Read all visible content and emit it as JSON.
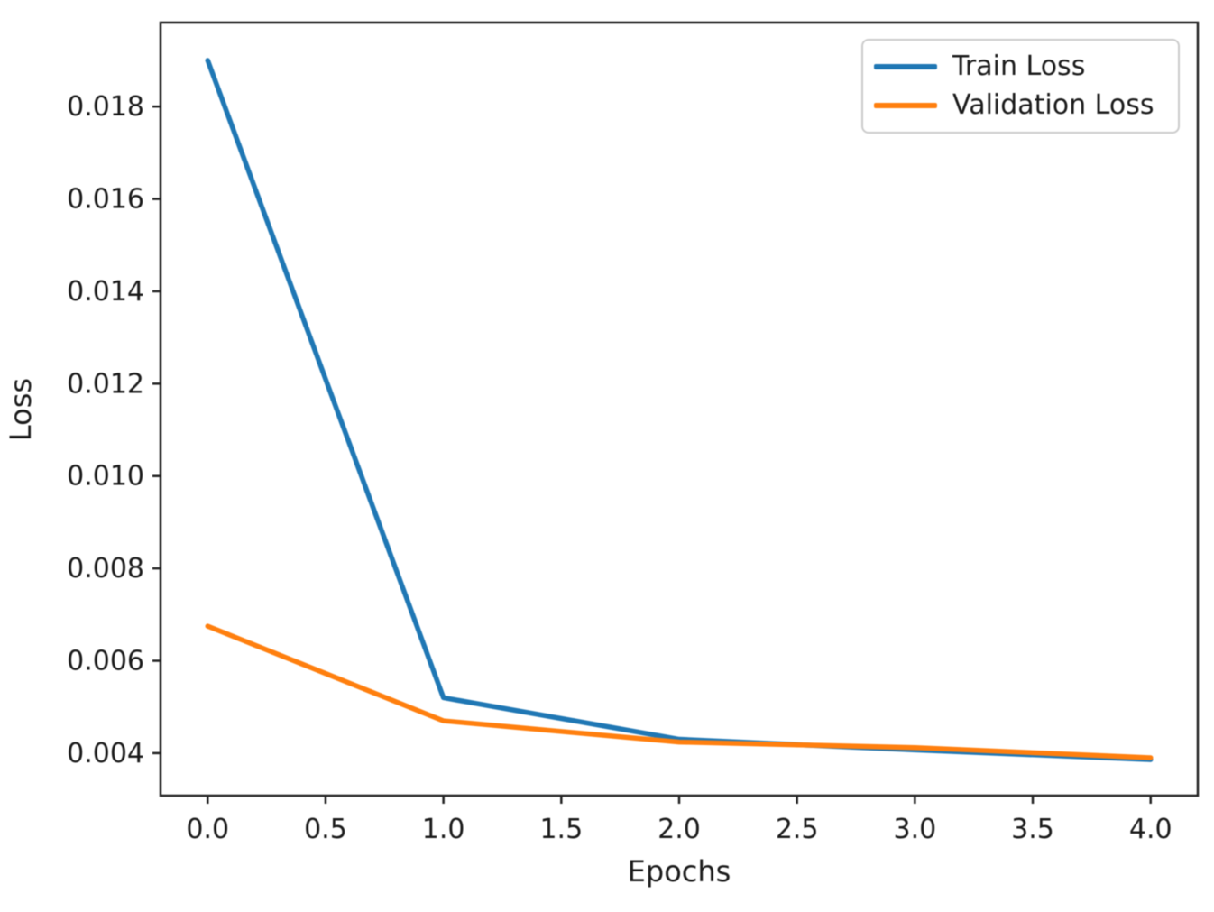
{
  "chart_data": {
    "type": "line",
    "title": "",
    "xlabel": "Epochs",
    "ylabel": "Loss",
    "x": [
      0,
      1,
      2,
      3,
      4
    ],
    "series": [
      {
        "name": "Train Loss",
        "color": "#1f77b4",
        "values": [
          0.019,
          0.0052,
          0.0043,
          0.00407,
          0.00386
        ]
      },
      {
        "name": "Validation Loss",
        "color": "#ff7f0e",
        "values": [
          0.00675,
          0.0047,
          0.00424,
          0.00412,
          0.0039
        ]
      }
    ],
    "xlim": [
      -0.2,
      4.2
    ],
    "ylim": [
      0.00308,
      0.01982
    ],
    "x_ticks": [
      0.0,
      0.5,
      1.0,
      1.5,
      2.0,
      2.5,
      3.0,
      3.5,
      4.0
    ],
    "x_tick_labels": [
      "0.0",
      "0.5",
      "1.0",
      "1.5",
      "2.0",
      "2.5",
      "3.0",
      "3.5",
      "4.0"
    ],
    "y_ticks": [
      0.004,
      0.006,
      0.008,
      0.01,
      0.012,
      0.014,
      0.016,
      0.018
    ],
    "y_tick_labels": [
      "0.004",
      "0.006",
      "0.008",
      "0.010",
      "0.012",
      "0.014",
      "0.016",
      "0.018"
    ],
    "grid": false,
    "legend_position": "upper right"
  },
  "style": {
    "spine_color": "#222222",
    "tick_color": "#222222",
    "text_color": "#1a1a1a",
    "background": "#ffffff",
    "legend_border": "#cccccc"
  }
}
